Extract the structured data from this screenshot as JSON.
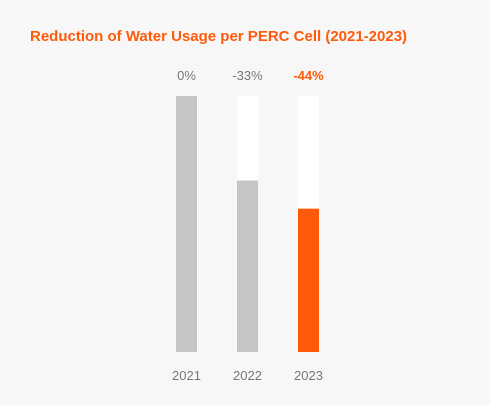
{
  "chart_data": {
    "type": "bar",
    "title": "Reduction of Water Usage per PERC Cell (2021-2023)",
    "categories": [
      "2021",
      "2022",
      "2023"
    ],
    "values": [
      0,
      -33,
      -44
    ],
    "value_labels": [
      "0%",
      "-33%",
      "-44%"
    ],
    "baseline_percent": 100,
    "xlabel": "",
    "ylabel": "",
    "ylim": [
      -100,
      0
    ],
    "grid": false,
    "legend": "none",
    "highlight_index": 2,
    "colors": {
      "bar": "#c4c5c4",
      "highlight": "#ff5a0a",
      "track": "#ffffff",
      "title": "#ff5a0a",
      "label": "#777777",
      "background": "#f7f7f7"
    }
  }
}
